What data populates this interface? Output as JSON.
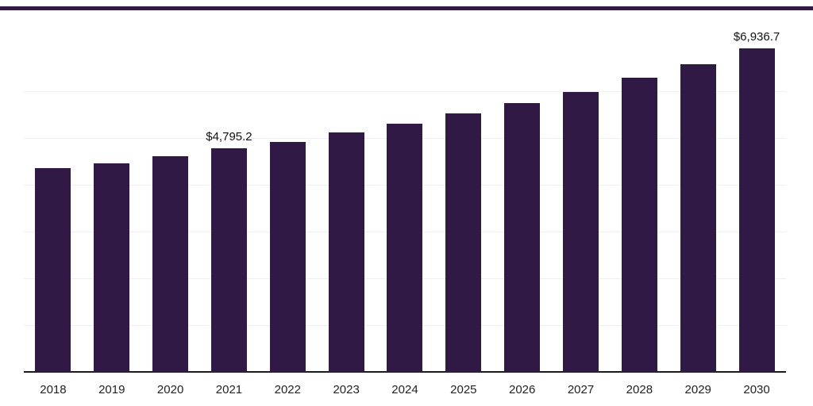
{
  "chart_data": {
    "type": "bar",
    "categories": [
      "2018",
      "2019",
      "2020",
      "2021",
      "2022",
      "2023",
      "2024",
      "2025",
      "2026",
      "2027",
      "2028",
      "2029",
      "2030"
    ],
    "values": [
      4380,
      4480,
      4630,
      4795.2,
      4930,
      5140,
      5330,
      5550,
      5770,
      6010,
      6300,
      6600,
      6936.7
    ],
    "data_labels": [
      "",
      "",
      "",
      "$4,795.2",
      "",
      "",
      "",
      "",
      "",
      "",
      "",
      "",
      "$6,936.7"
    ],
    "title": "",
    "xlabel": "",
    "ylabel": "",
    "ylim": [
      0,
      7800
    ],
    "grid": true,
    "gridline_step": 1000,
    "legend": "none",
    "bar_color": "#301a45",
    "axis_color": "#1a1a1a",
    "gridline_color": "#ededf2",
    "label_color": "#111111"
  }
}
